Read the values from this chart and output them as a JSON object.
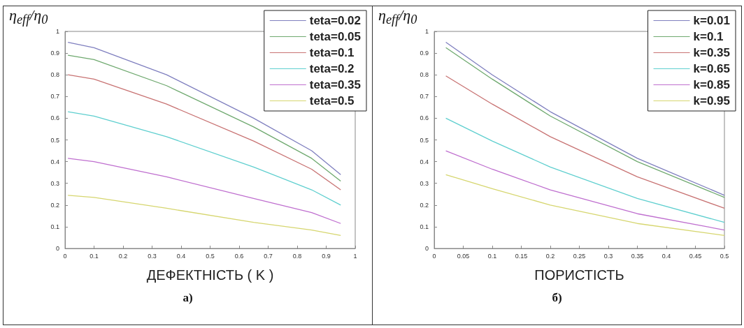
{
  "chart_data": [
    {
      "type": "line",
      "ylabel": "η$_{eff}$/η$_{0}$",
      "xlabel": "ДЕФЕКТНІСТЬ ( K )",
      "annotations": [
        "а)"
      ],
      "x": [
        0.01,
        0.1,
        0.35,
        0.65,
        0.85,
        0.95
      ],
      "series": [
        {
          "name": "teta=0.02",
          "color": "#7f7fbf",
          "values": [
            0.95,
            0.925,
            0.8,
            0.6,
            0.45,
            0.34
          ]
        },
        {
          "name": "teta=0.05",
          "color": "#6fa96f",
          "values": [
            0.89,
            0.87,
            0.75,
            0.56,
            0.415,
            0.31
          ]
        },
        {
          "name": "teta=0.1",
          "color": "#c87373",
          "values": [
            0.8,
            0.78,
            0.665,
            0.495,
            0.365,
            0.27
          ]
        },
        {
          "name": "teta=0.2",
          "color": "#5fcfcf",
          "values": [
            0.63,
            0.61,
            0.515,
            0.375,
            0.27,
            0.2
          ]
        },
        {
          "name": "teta=0.35",
          "color": "#bf6fcf",
          "values": [
            0.415,
            0.4,
            0.33,
            0.23,
            0.165,
            0.115
          ]
        },
        {
          "name": "teta=0.5",
          "color": "#d6d66f",
          "values": [
            0.245,
            0.235,
            0.185,
            0.12,
            0.085,
            0.06
          ]
        }
      ],
      "xlim": [
        0,
        1
      ],
      "xticks": [
        0,
        0.1,
        0.2,
        0.3,
        0.4,
        0.5,
        0.6,
        0.7,
        0.8,
        0.9,
        1
      ],
      "ylim": [
        0,
        1
      ],
      "yticks": [
        0,
        0.1,
        0.2,
        0.3,
        0.4,
        0.5,
        0.6,
        0.7,
        0.8,
        0.9,
        1
      ],
      "grid": false,
      "legend": "top right",
      "marker": "none",
      "line_style": "solid"
    },
    {
      "type": "line",
      "ylabel": "η$_{eff}$/η$_{0}$",
      "xlabel": "ПОРИСТІСТЬ",
      "annotations": [
        "б)"
      ],
      "x": [
        0.02,
        0.1,
        0.2,
        0.35,
        0.5
      ],
      "series": [
        {
          "name": "k=0.01",
          "color": "#7f7fbf",
          "values": [
            0.95,
            0.8,
            0.63,
            0.415,
            0.245
          ]
        },
        {
          "name": "k=0.1",
          "color": "#6fa96f",
          "values": [
            0.925,
            0.78,
            0.61,
            0.4,
            0.235
          ]
        },
        {
          "name": "k=0.35",
          "color": "#c87373",
          "values": [
            0.795,
            0.665,
            0.515,
            0.33,
            0.185
          ]
        },
        {
          "name": "k=0.65",
          "color": "#5fcfcf",
          "values": [
            0.6,
            0.495,
            0.375,
            0.23,
            0.12
          ]
        },
        {
          "name": "k=0.85",
          "color": "#bf6fcf",
          "values": [
            0.45,
            0.365,
            0.27,
            0.16,
            0.085
          ]
        },
        {
          "name": "k=0.95",
          "color": "#d6d66f",
          "values": [
            0.34,
            0.275,
            0.2,
            0.115,
            0.06
          ]
        }
      ],
      "xlim": [
        0,
        0.5
      ],
      "xticks": [
        0,
        0.05,
        0.1,
        0.15,
        0.2,
        0.25,
        0.3,
        0.35,
        0.4,
        0.45,
        0.5
      ],
      "ylim": [
        0,
        1
      ],
      "yticks": [
        0,
        0.1,
        0.2,
        0.3,
        0.4,
        0.5,
        0.6,
        0.7,
        0.8,
        0.9,
        1
      ],
      "grid": false,
      "legend": "top right",
      "marker": "none",
      "line_style": "solid"
    }
  ]
}
